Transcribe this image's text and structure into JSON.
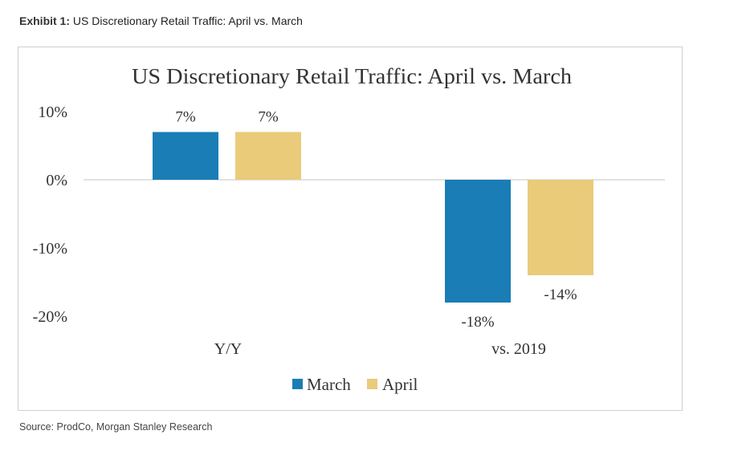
{
  "header": {
    "exhibit_label": "Exhibit 1:",
    "exhibit_title": "US Discretionary Retail Traffic: April vs. March"
  },
  "source": "Source: ProdCo, Morgan Stanley Research",
  "colors": {
    "march": "#1a7db6",
    "april": "#e9cb7a",
    "zero_line": "#d0d0d0"
  },
  "chart_data": {
    "type": "bar",
    "title": "US Discretionary Retail Traffic: April vs. March",
    "categories": [
      "Y/Y",
      "vs. 2019"
    ],
    "series": [
      {
        "name": "March",
        "values": [
          7,
          -18
        ],
        "labels": [
          "7%",
          "-18%"
        ]
      },
      {
        "name": "April",
        "values": [
          7,
          -14
        ],
        "labels": [
          "7%",
          "-14%"
        ]
      }
    ],
    "yticks": [
      "10%",
      "0%",
      "-10%",
      "-20%"
    ],
    "ytick_values": [
      10,
      0,
      -10,
      -20
    ],
    "ylim": [
      -20,
      10
    ],
    "grid": false,
    "legend": "bottom-center",
    "xlabel": "",
    "ylabel": ""
  }
}
